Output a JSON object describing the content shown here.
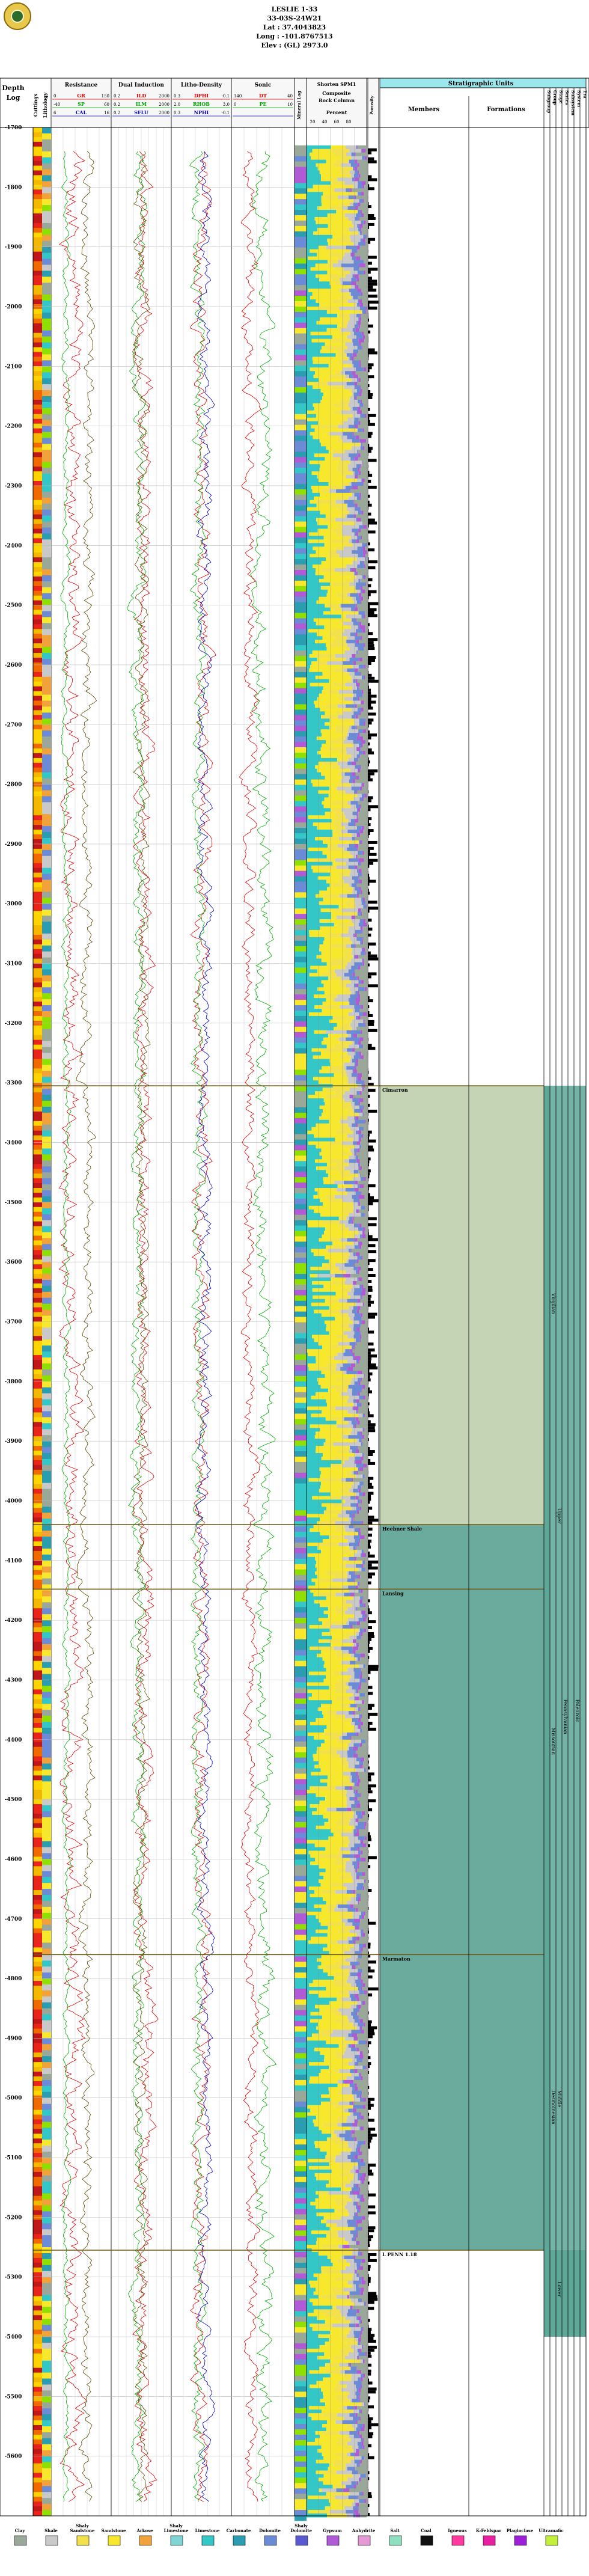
{
  "header": {
    "well_name": "LESLIE 1-33",
    "location": "33-03S-24W21",
    "lat": "Lat : 37.4043823",
    "long": "Long : -101.8767513",
    "elev": "Elev : (GL) 2973.0"
  },
  "columns": {
    "depth_title": "Depth",
    "depth_sub": "Log",
    "lith_col_label": "Lithology",
    "cuttings": "Cuttings",
    "resistance": "Resistance",
    "dual_induction": "Dual Induction",
    "litho_density": "Litho-Density",
    "sonic": "Sonic",
    "mineral": "Mineral Log",
    "spm": "Shorten SPM1",
    "composite": "Composite",
    "rock_column": "Rock Column",
    "percent": "Percent",
    "porosity": "Porosity",
    "strat_units": "Stratigraphic Units",
    "members": "Members",
    "formations": "Formations",
    "groups": [
      "Subgroup",
      "Group",
      "Stage",
      "Series",
      "Subsystem",
      "System",
      "Era"
    ]
  },
  "track_labels": {
    "resistance": [
      [
        "GR",
        "0",
        "150"
      ],
      [
        "SP",
        "-40",
        "60"
      ],
      [
        "CAL",
        "6",
        "16"
      ]
    ],
    "induction": [
      [
        "ILD",
        "0.2",
        "2000"
      ],
      [
        "ILM",
        "0.2",
        "2000"
      ],
      [
        "SFLU",
        "0.2",
        "2000"
      ]
    ],
    "density": [
      [
        "DPHI",
        "0.3",
        "-0.1"
      ],
      [
        "RHOB",
        "2.0",
        "3.0"
      ],
      [
        "NPHI",
        "0.3",
        "-0.1"
      ]
    ],
    "sonic": [
      [
        "DT",
        "140",
        "40"
      ],
      [
        "PE",
        "0",
        "10"
      ],
      [
        "",
        "",
        ""
      ]
    ]
  },
  "percent_ticks": [
    "20",
    "40",
    "60",
    "80"
  ],
  "chart_data": {
    "type": "well-log",
    "depth_axis": {
      "unit": "ft",
      "min": 1700,
      "max": 5700,
      "tick_interval": 100,
      "ticks": [
        1700,
        1800,
        1900,
        2000,
        2100,
        2200,
        2300,
        2400,
        2500,
        2600,
        2700,
        2800,
        2900,
        3000,
        3100,
        3200,
        3300,
        3400,
        3500,
        3600,
        3700,
        3800,
        3900,
        4000,
        4100,
        4200,
        4300,
        4400,
        4500,
        4600,
        4700,
        4800,
        4900,
        5000,
        5100,
        5200,
        5300,
        5400,
        5500,
        5600
      ]
    },
    "formation_tops": [
      {
        "name": "Cimarron",
        "depth": 3305
      },
      {
        "name": "Heebner Shale",
        "depth": 4040
      },
      {
        "name": "Lansing",
        "depth": 4148
      },
      {
        "name": "Marmaton",
        "depth": 4760
      },
      {
        "name": "L PENN 1.18",
        "depth": 5255
      }
    ],
    "strat_intervals": [
      {
        "label": "Virgilian",
        "from": 3305,
        "to": 4040
      },
      {
        "label": "Missourian",
        "from": 4040,
        "to": 4760
      },
      {
        "label": "Desmoinesian",
        "from": 4760,
        "to": 5255
      },
      {
        "label": "Upper",
        "from": 3305,
        "to": 4760
      },
      {
        "label": "Middle",
        "from": 4760,
        "to": 5255
      },
      {
        "label": "Lower",
        "from": 5255,
        "to": 5400
      },
      {
        "label": "Pennsylvanian",
        "from": 3305,
        "to": 5400
      },
      {
        "label": "Paleozoic",
        "from": 3305,
        "to": 5400
      }
    ],
    "lithology_legend": [
      {
        "name": "Clay",
        "color": "#9aa89a"
      },
      {
        "name": "Shale",
        "color": "#c9c9c9"
      },
      {
        "name": "Shaly Sandstone",
        "color": "#f2e14a"
      },
      {
        "name": "Sandstone",
        "color": "#f7e82e"
      },
      {
        "name": "Arkose",
        "color": "#f2a23a"
      },
      {
        "name": "Shaly Limestone",
        "color": "#7fd4d4"
      },
      {
        "name": "Limestone",
        "color": "#33c7c7"
      },
      {
        "name": "Carbonate",
        "color": "#2a9db0"
      },
      {
        "name": "Dolomite",
        "color": "#6b8bd6"
      },
      {
        "name": "Shaly Dolomite",
        "color": "#5a5ad0"
      },
      {
        "name": "Gypsum",
        "color": "#b05ad6"
      },
      {
        "name": "Anhydrite",
        "color": "#e59ad6"
      },
      {
        "name": "Salt",
        "color": "#8fe0c0"
      },
      {
        "name": "Coal",
        "color": "#111111"
      },
      {
        "name": "Igneous",
        "color": "#ff3aa0"
      },
      {
        "name": "K-Feldspar",
        "color": "#e81fa0"
      },
      {
        "name": "Plagioclase",
        "color": "#9a1fd6"
      },
      {
        "name": "Ultramafic",
        "color": "#c3f03a"
      }
    ]
  }
}
